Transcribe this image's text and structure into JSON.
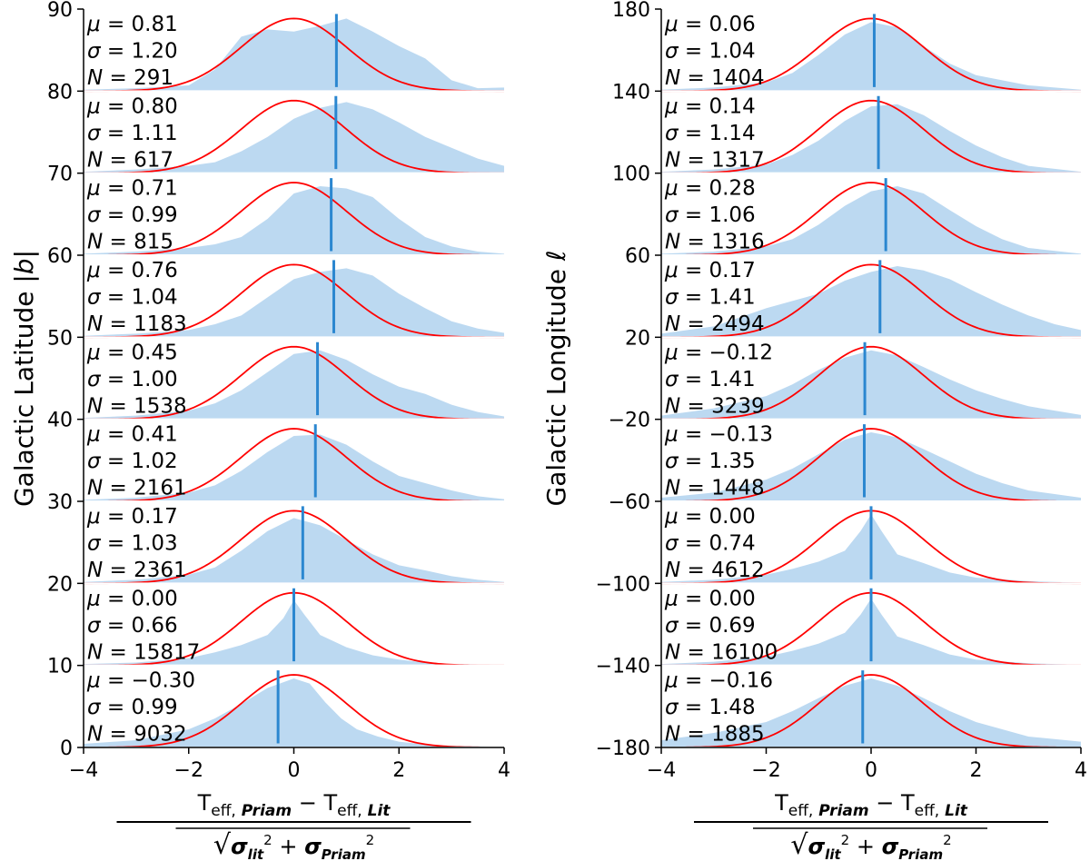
{
  "chart_data": [
    {
      "type": "area",
      "ylabel": "Galactic Latitude |b|",
      "xlabel": {
        "numerator": "T_eff,Priam − T_eff,Lit",
        "denominator": "√(σ²_lit + σ²_Priam)"
      },
      "xlim": [
        -4,
        4
      ],
      "xticks": [
        -4,
        -2,
        0,
        2,
        4
      ],
      "ylim": [
        0,
        90
      ],
      "yticks": [
        0,
        10,
        20,
        30,
        40,
        50,
        60,
        70,
        80,
        90
      ],
      "series_colors": {
        "histogram": "#bcd9f1",
        "gaussian": "#ff0000",
        "median_line": "#2b87d0"
      },
      "panels": [
        {
          "base": 0,
          "mu": -0.3,
          "sigma": 0.99,
          "N": 9032,
          "mu_text": "−0.30",
          "sigma_text": "0.99",
          "N_text": "9032",
          "dist_x": [
            -4,
            -3,
            -2,
            -1.5,
            -1,
            -0.5,
            0,
            0.3,
            0.6,
            0.9,
            1.2,
            1.6,
            2,
            2.5,
            3,
            4
          ],
          "dist_y": [
            0.05,
            0.1,
            0.25,
            0.4,
            0.6,
            0.82,
            0.95,
            0.88,
            0.62,
            0.4,
            0.25,
            0.15,
            0.08,
            0.04,
            0.02,
            0.01
          ]
        },
        {
          "base": 10,
          "mu": 0.0,
          "sigma": 0.66,
          "N": 15817,
          "mu_text": "0.00",
          "sigma_text": "0.66",
          "N_text": "15817",
          "dist_x": [
            -4,
            -3,
            -2,
            -1.5,
            -1,
            -0.5,
            -0.2,
            0,
            0.2,
            0.5,
            1,
            1.5,
            2,
            2.5,
            3,
            4
          ],
          "dist_y": [
            0.02,
            0.04,
            0.1,
            0.18,
            0.28,
            0.42,
            0.65,
            0.9,
            0.7,
            0.42,
            0.25,
            0.14,
            0.08,
            0.04,
            0.02,
            0.01
          ]
        },
        {
          "base": 20,
          "mu": 0.17,
          "sigma": 1.03,
          "N": 2361,
          "mu_text": "0.17",
          "sigma_text": "1.03",
          "N_text": "2361",
          "dist_x": [
            -4,
            -3,
            -2,
            -1.5,
            -1,
            -0.5,
            0,
            0.5,
            1,
            1.5,
            2,
            2.5,
            3,
            3.5,
            4
          ],
          "dist_y": [
            0.02,
            0.05,
            0.12,
            0.22,
            0.45,
            0.72,
            0.9,
            0.8,
            0.6,
            0.4,
            0.25,
            0.18,
            0.1,
            0.05,
            0.02
          ]
        },
        {
          "base": 30,
          "mu": 0.41,
          "sigma": 1.02,
          "N": 2161,
          "mu_text": "0.41",
          "sigma_text": "1.02",
          "N_text": "2161",
          "dist_x": [
            -4,
            -3,
            -2,
            -1.5,
            -1,
            -0.5,
            0,
            0.5,
            1,
            1.5,
            2,
            2.5,
            3,
            3.5,
            4
          ],
          "dist_y": [
            0.02,
            0.05,
            0.12,
            0.22,
            0.42,
            0.68,
            0.9,
            0.92,
            0.78,
            0.55,
            0.35,
            0.25,
            0.15,
            0.07,
            0.03
          ]
        },
        {
          "base": 40,
          "mu": 0.45,
          "sigma": 1.0,
          "N": 1538,
          "mu_text": "0.45",
          "sigma_text": "1.00",
          "N_text": "1538",
          "dist_x": [
            -4,
            -3,
            -2,
            -1.5,
            -1,
            -0.5,
            0,
            0.5,
            1,
            1.5,
            2,
            2.5,
            3,
            3.5,
            4
          ],
          "dist_y": [
            0.02,
            0.05,
            0.12,
            0.22,
            0.4,
            0.65,
            0.9,
            0.95,
            0.82,
            0.62,
            0.45,
            0.35,
            0.2,
            0.1,
            0.04
          ]
        },
        {
          "base": 50,
          "mu": 0.76,
          "sigma": 1.04,
          "N": 1183,
          "mu_text": "0.76",
          "sigma_text": "1.04",
          "N_text": "1183",
          "dist_x": [
            -4,
            -3,
            -2,
            -1.5,
            -1,
            -0.5,
            0,
            0.5,
            1,
            1.5,
            2,
            2.5,
            3,
            3.5,
            4
          ],
          "dist_y": [
            0.02,
            0.05,
            0.1,
            0.18,
            0.3,
            0.55,
            0.8,
            0.9,
            0.95,
            0.85,
            0.6,
            0.4,
            0.22,
            0.12,
            0.06
          ]
        },
        {
          "base": 60,
          "mu": 0.71,
          "sigma": 0.99,
          "N": 815,
          "mu_text": "0.71",
          "sigma_text": "0.99",
          "N_text": "815",
          "dist_x": [
            -4,
            -3,
            -2,
            -1.5,
            -1,
            -0.5,
            0,
            0.5,
            1,
            1.5,
            2,
            2.5,
            3,
            3.5,
            4
          ],
          "dist_y": [
            0.02,
            0.05,
            0.1,
            0.15,
            0.25,
            0.5,
            0.85,
            0.95,
            0.92,
            0.8,
            0.5,
            0.25,
            0.12,
            0.05,
            0.02
          ]
        },
        {
          "base": 70,
          "mu": 0.8,
          "sigma": 1.11,
          "N": 617,
          "mu_text": "0.80",
          "sigma_text": "1.11",
          "N_text": "617",
          "dist_x": [
            -4,
            -3,
            -2,
            -1.5,
            -1,
            -0.5,
            0,
            0.5,
            1,
            1.5,
            2,
            2.5,
            3,
            3.5,
            4
          ],
          "dist_y": [
            0.02,
            0.05,
            0.1,
            0.15,
            0.3,
            0.5,
            0.75,
            0.9,
            0.98,
            0.88,
            0.7,
            0.5,
            0.35,
            0.2,
            0.1
          ]
        },
        {
          "base": 80,
          "mu": 0.81,
          "sigma": 1.2,
          "N": 291,
          "mu_text": "0.81",
          "sigma_text": "1.20",
          "N_text": "291",
          "dist_x": [
            -4,
            -3,
            -2,
            -1.5,
            -1,
            -0.5,
            0,
            0.5,
            1,
            1.5,
            2,
            2.5,
            3,
            3.5,
            4
          ],
          "dist_y": [
            0.02,
            0.04,
            0.08,
            0.3,
            0.75,
            0.85,
            0.82,
            0.9,
            1.0,
            0.82,
            0.62,
            0.45,
            0.15,
            0.04,
            0.05
          ]
        }
      ]
    },
    {
      "type": "area",
      "ylabel": "Galactic Longitude ℓ",
      "xlabel": {
        "numerator": "T_eff,Priam − T_eff,Lit",
        "denominator": "√(σ²_lit + σ²_Priam)"
      },
      "xlim": [
        -4,
        4
      ],
      "xticks": [
        -4,
        -2,
        0,
        2,
        4
      ],
      "ylim": [
        -180,
        180
      ],
      "yticks": [
        -180,
        -140,
        -100,
        -60,
        -20,
        20,
        60,
        100,
        140,
        180
      ],
      "series_colors": {
        "histogram": "#bcd9f1",
        "gaussian": "#ff0000",
        "median_line": "#2b87d0"
      },
      "panels": [
        {
          "base": -180,
          "mu": -0.16,
          "sigma": 1.48,
          "N": 1885,
          "mu_text": "−0.16",
          "sigma_text": "1.48",
          "N_text": "1885",
          "dist_x": [
            -4,
            -3,
            -2,
            -1.5,
            -1,
            -0.5,
            0,
            0.5,
            1,
            1.5,
            2,
            2.5,
            3,
            4
          ],
          "dist_y": [
            0.1,
            0.2,
            0.35,
            0.5,
            0.68,
            0.85,
            0.95,
            0.85,
            0.68,
            0.5,
            0.35,
            0.25,
            0.15,
            0.08
          ]
        },
        {
          "base": -140,
          "mu": 0.0,
          "sigma": 0.69,
          "N": 16100,
          "mu_text": "0.00",
          "sigma_text": "0.69",
          "N_text": "16100",
          "dist_x": [
            -4,
            -3,
            -2,
            -1.5,
            -1,
            -0.5,
            -0.2,
            0,
            0.2,
            0.5,
            1,
            1.5,
            2,
            3,
            4
          ],
          "dist_y": [
            0.02,
            0.05,
            0.12,
            0.2,
            0.3,
            0.45,
            0.7,
            0.92,
            0.7,
            0.4,
            0.28,
            0.15,
            0.08,
            0.03,
            0.01
          ]
        },
        {
          "base": -100,
          "mu": 0.0,
          "sigma": 0.74,
          "N": 4612,
          "mu_text": "0.00",
          "sigma_text": "0.74",
          "N_text": "4612",
          "dist_x": [
            -4,
            -3,
            -2,
            -1.5,
            -1,
            -0.5,
            -0.2,
            0,
            0.2,
            0.5,
            1,
            1.5,
            2,
            3,
            4
          ],
          "dist_y": [
            0.02,
            0.05,
            0.12,
            0.2,
            0.3,
            0.45,
            0.72,
            0.95,
            0.72,
            0.4,
            0.28,
            0.15,
            0.08,
            0.03,
            0.01
          ]
        },
        {
          "base": -60,
          "mu": -0.13,
          "sigma": 1.35,
          "N": 1448,
          "mu_text": "−0.13",
          "sigma_text": "1.35",
          "N_text": "1448",
          "dist_x": [
            -4,
            -3,
            -2,
            -1.5,
            -1,
            -0.5,
            0,
            0.5,
            1,
            1.5,
            2,
            2.5,
            3,
            4
          ],
          "dist_y": [
            0.05,
            0.12,
            0.3,
            0.45,
            0.65,
            0.85,
            0.95,
            0.88,
            0.72,
            0.55,
            0.38,
            0.25,
            0.15,
            0.05
          ]
        },
        {
          "base": -20,
          "mu": -0.12,
          "sigma": 1.41,
          "N": 3239,
          "mu_text": "−0.12",
          "sigma_text": "1.41",
          "N_text": "3239",
          "dist_x": [
            -4,
            -3,
            -2,
            -1.5,
            -1,
            -0.5,
            0,
            0.5,
            1,
            1.5,
            2,
            2.5,
            3,
            4
          ],
          "dist_y": [
            0.05,
            0.15,
            0.32,
            0.48,
            0.68,
            0.85,
            0.95,
            0.88,
            0.72,
            0.55,
            0.4,
            0.28,
            0.18,
            0.06
          ]
        },
        {
          "base": 20,
          "mu": 0.17,
          "sigma": 1.41,
          "N": 2494,
          "mu_text": "0.17",
          "sigma_text": "1.41",
          "N_text": "2494",
          "dist_x": [
            -4,
            -3,
            -2,
            -1.5,
            -1,
            -0.5,
            0,
            0.5,
            1,
            1.5,
            2,
            2.5,
            3,
            3.5,
            4
          ],
          "dist_y": [
            0.05,
            0.15,
            0.4,
            0.5,
            0.6,
            0.78,
            0.9,
            0.98,
            0.92,
            0.8,
            0.62,
            0.45,
            0.3,
            0.18,
            0.1
          ]
        },
        {
          "base": 60,
          "mu": 0.28,
          "sigma": 1.06,
          "N": 1316,
          "mu_text": "0.28",
          "sigma_text": "1.06",
          "N_text": "1316",
          "dist_x": [
            -4,
            -3,
            -2,
            -1.5,
            -1,
            -0.5,
            0,
            0.5,
            1,
            1.5,
            2,
            2.5,
            3,
            4
          ],
          "dist_y": [
            0.02,
            0.05,
            0.12,
            0.22,
            0.42,
            0.68,
            0.88,
            0.95,
            0.85,
            0.62,
            0.4,
            0.22,
            0.1,
            0.02
          ]
        },
        {
          "base": 100,
          "mu": 0.14,
          "sigma": 1.14,
          "N": 1317,
          "mu_text": "0.14",
          "sigma_text": "1.14",
          "N_text": "1317",
          "dist_x": [
            -4,
            -3,
            -2,
            -1.5,
            -1,
            -0.5,
            0,
            0.5,
            1,
            1.5,
            2,
            2.5,
            3,
            4
          ],
          "dist_y": [
            0.02,
            0.05,
            0.12,
            0.25,
            0.45,
            0.72,
            0.92,
            0.95,
            0.8,
            0.58,
            0.38,
            0.22,
            0.1,
            0.02
          ]
        },
        {
          "base": 140,
          "mu": 0.06,
          "sigma": 1.04,
          "N": 1404,
          "mu_text": "0.06",
          "sigma_text": "1.04",
          "N_text": "1404",
          "dist_x": [
            -4,
            -3,
            -2,
            -1.5,
            -1,
            -0.5,
            0,
            0.5,
            1,
            1.5,
            2,
            2.5,
            3,
            4
          ],
          "dist_y": [
            0.02,
            0.05,
            0.12,
            0.25,
            0.5,
            0.78,
            0.95,
            0.88,
            0.62,
            0.38,
            0.22,
            0.15,
            0.08,
            0.02
          ]
        }
      ]
    }
  ]
}
